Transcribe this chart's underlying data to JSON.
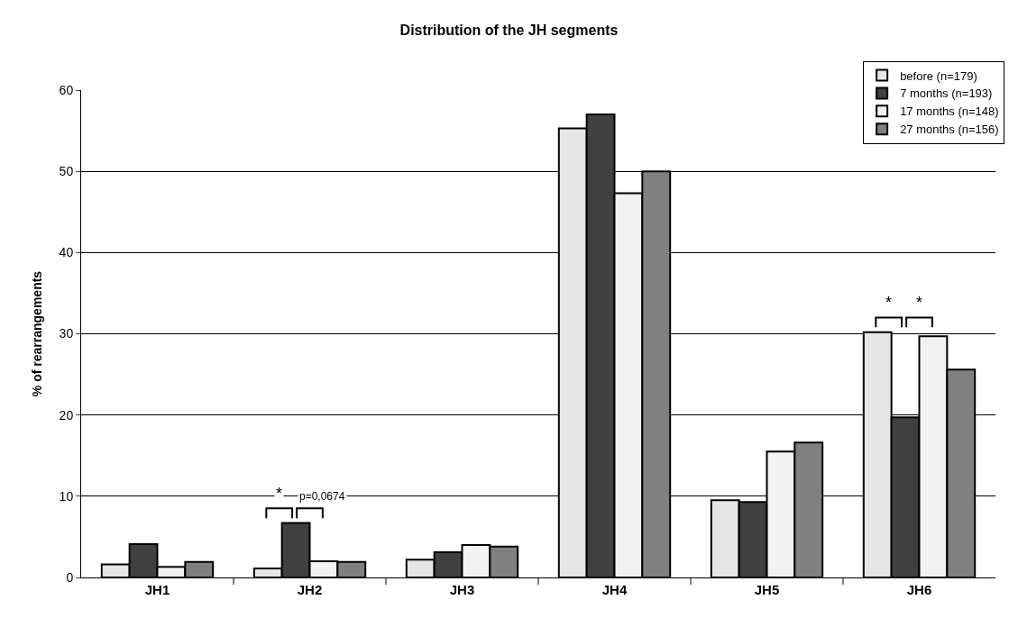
{
  "chart_data": {
    "type": "bar",
    "title": "Distribution of the JH segments",
    "ylabel": "% of rearrangements",
    "categories": [
      "JH1",
      "JH2",
      "JH3",
      "JH4",
      "JH5",
      "JH6"
    ],
    "series": [
      {
        "name": "before (n=179)",
        "color": "#e6e6e6",
        "values": [
          1.6,
          1.1,
          2.2,
          55.3,
          9.5,
          30.2
        ]
      },
      {
        "name": "7 months (n=193)",
        "color": "#404040",
        "values": [
          4.1,
          6.7,
          3.1,
          57.0,
          9.3,
          19.7
        ]
      },
      {
        "name": "17 months (n=148)",
        "color": "#f2f2f2",
        "values": [
          1.3,
          2.0,
          4.0,
          47.3,
          15.5,
          29.7
        ]
      },
      {
        "name": "27 months (n=156)",
        "color": "#808080",
        "values": [
          1.9,
          1.9,
          3.8,
          50.0,
          16.6,
          25.6
        ]
      }
    ],
    "annotations": [
      "*",
      "p=0,0674",
      "*",
      "*"
    ],
    "ylim": [
      0,
      60
    ],
    "yticks": [
      0,
      10,
      20,
      30,
      40,
      50,
      60
    ],
    "grid": "y",
    "legend": "top right"
  }
}
